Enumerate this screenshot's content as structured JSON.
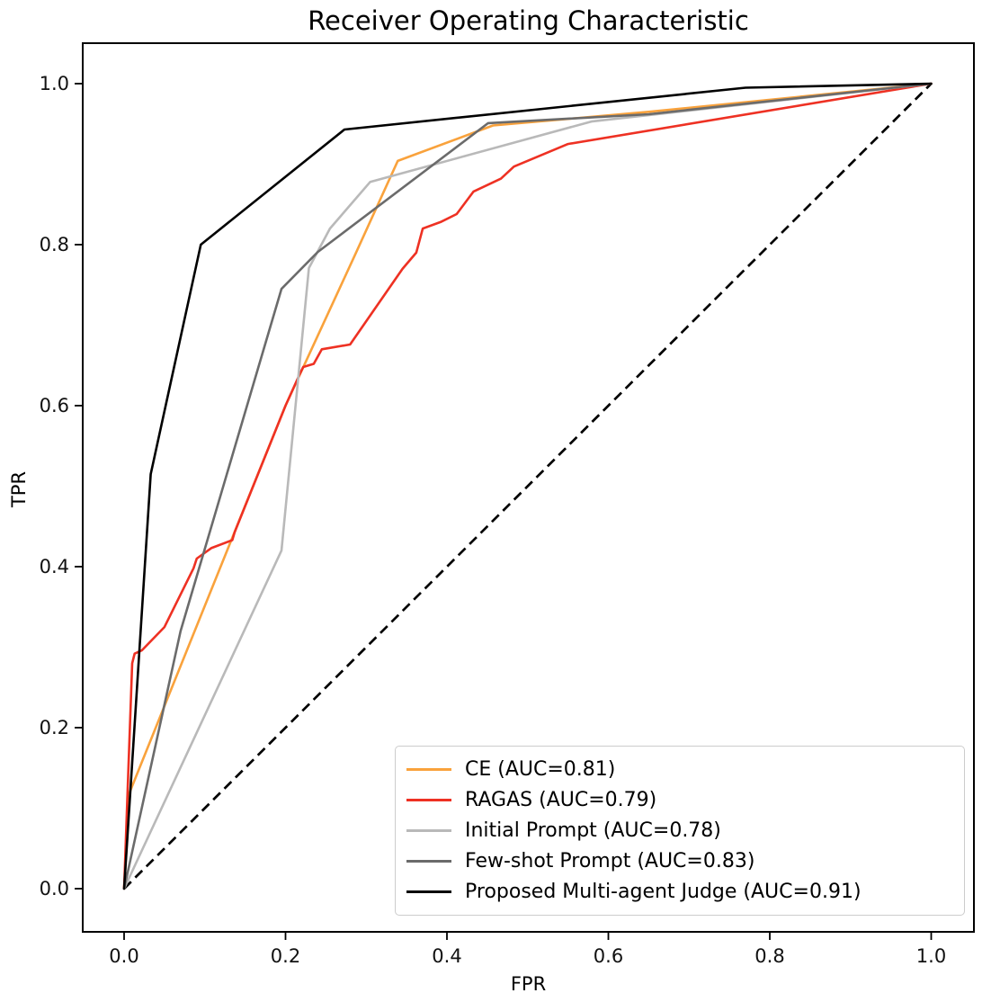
{
  "figure": {
    "title": "Receiver Operating Characteristic",
    "xlabel": "FPR",
    "ylabel": "TPR"
  },
  "chart_data": {
    "type": "line",
    "title": "Receiver Operating Characteristic",
    "xlabel": "FPR",
    "ylabel": "TPR",
    "xlim": [
      0.0,
      1.0
    ],
    "ylim": [
      0.0,
      1.0
    ],
    "grid": false,
    "legend_position": "lower right",
    "x_ticks": {
      "values": [
        0.0,
        0.2,
        0.4,
        0.6,
        0.8,
        1.0
      ],
      "labels": [
        "0.0",
        "0.2",
        "0.4",
        "0.6",
        "0.8",
        "1.0"
      ]
    },
    "y_ticks": {
      "values": [
        0.0,
        0.2,
        0.4,
        0.6,
        0.8,
        1.0
      ],
      "labels": [
        "0.0",
        "0.2",
        "0.4",
        "0.6",
        "0.8",
        "1.0"
      ]
    },
    "diagonal": {
      "name": "chance-line",
      "style": "dashed",
      "color": "#000000",
      "points": [
        [
          0,
          0
        ],
        [
          1,
          1
        ]
      ]
    },
    "series": [
      {
        "name": "CE (AUC=0.81)",
        "auc": 0.81,
        "color": "#f9a23c",
        "points": [
          [
            0,
            0
          ],
          [
            0.007,
            0.12
          ],
          [
            0.2,
            0.6
          ],
          [
            0.286,
            0.787
          ],
          [
            0.339,
            0.904
          ],
          [
            0.457,
            0.948
          ],
          [
            0.65,
            0.965
          ],
          [
            1,
            1
          ]
        ]
      },
      {
        "name": "RAGAS (AUC=0.79)",
        "auc": 0.79,
        "color": "#ee3123",
        "points": [
          [
            0,
            0
          ],
          [
            0.01,
            0.28
          ],
          [
            0.013,
            0.292
          ],
          [
            0.022,
            0.296
          ],
          [
            0.05,
            0.325
          ],
          [
            0.086,
            0.398
          ],
          [
            0.09,
            0.41
          ],
          [
            0.108,
            0.423
          ],
          [
            0.134,
            0.433
          ],
          [
            0.137,
            0.443
          ],
          [
            0.2,
            0.6
          ],
          [
            0.217,
            0.638
          ],
          [
            0.222,
            0.648
          ],
          [
            0.235,
            0.652
          ],
          [
            0.245,
            0.67
          ],
          [
            0.28,
            0.676
          ],
          [
            0.345,
            0.77
          ],
          [
            0.362,
            0.79
          ],
          [
            0.37,
            0.82
          ],
          [
            0.392,
            0.828
          ],
          [
            0.412,
            0.838
          ],
          [
            0.433,
            0.866
          ],
          [
            0.467,
            0.882
          ],
          [
            0.483,
            0.897
          ],
          [
            0.55,
            0.925
          ],
          [
            1,
            1
          ]
        ]
      },
      {
        "name": "Initial Prompt (AUC=0.78)",
        "auc": 0.78,
        "color": "#b9b9b9",
        "points": [
          [
            0,
            0
          ],
          [
            0.195,
            0.42
          ],
          [
            0.229,
            0.771
          ],
          [
            0.255,
            0.82
          ],
          [
            0.305,
            0.878
          ],
          [
            0.579,
            0.953
          ],
          [
            1,
            1
          ]
        ]
      },
      {
        "name": "Few-shot Prompt (AUC=0.83)",
        "auc": 0.83,
        "color": "#6b6b6b",
        "points": [
          [
            0,
            0
          ],
          [
            0.07,
            0.32
          ],
          [
            0.195,
            0.745
          ],
          [
            0.24,
            0.791
          ],
          [
            0.451,
            0.951
          ],
          [
            0.65,
            0.962
          ],
          [
            1,
            1
          ]
        ]
      },
      {
        "name": "Proposed Multi-agent Judge (AUC=0.91)",
        "auc": 0.91,
        "color": "#000000",
        "points": [
          [
            0,
            0
          ],
          [
            0.033,
            0.515
          ],
          [
            0.095,
            0.8
          ],
          [
            0.273,
            0.943
          ],
          [
            0.77,
            0.995
          ],
          [
            1,
            1
          ]
        ]
      }
    ]
  }
}
